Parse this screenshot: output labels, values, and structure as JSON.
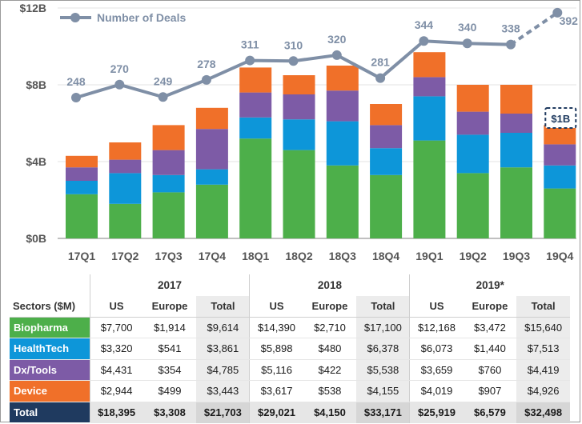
{
  "chart_data": {
    "type": "bar",
    "stacked": true,
    "title": "",
    "categories": [
      "17Q1",
      "17Q2",
      "17Q3",
      "17Q4",
      "18Q1",
      "18Q2",
      "18Q3",
      "18Q4",
      "19Q1",
      "19Q2",
      "19Q3",
      "19Q4"
    ],
    "y_ticks": [
      "$0B",
      "$4B",
      "$8B",
      "$12B"
    ],
    "ylim": [
      0,
      12
    ],
    "series": [
      {
        "name": "Biopharma",
        "color": "#4daf4a",
        "values": [
          2.3,
          1.8,
          2.4,
          2.8,
          5.2,
          4.6,
          3.8,
          3.3,
          5.1,
          3.4,
          3.7,
          2.6
        ]
      },
      {
        "name": "HealthTech",
        "color": "#0d96d9",
        "values": [
          0.7,
          1.6,
          0.9,
          0.8,
          1.1,
          1.6,
          2.3,
          1.4,
          2.3,
          2.0,
          1.8,
          1.2
        ]
      },
      {
        "name": "Dx/Tools",
        "color": "#7d5ba6",
        "values": [
          0.7,
          0.7,
          1.3,
          2.1,
          1.3,
          1.3,
          1.6,
          1.2,
          1.0,
          1.2,
          1.0,
          1.1
        ]
      },
      {
        "name": "Device",
        "color": "#f07029",
        "values": [
          0.6,
          0.9,
          1.3,
          1.1,
          1.3,
          1.0,
          1.3,
          1.1,
          1.3,
          1.4,
          1.5,
          1.0
        ]
      }
    ],
    "deals": {
      "name": "Number of Deals",
      "color": "#7f8fa6",
      "values": [
        248,
        270,
        249,
        278,
        311,
        310,
        320,
        281,
        344,
        340,
        338,
        392
      ],
      "labels": [
        "248",
        "270",
        "249",
        "278",
        "311",
        "310",
        "320",
        "281",
        "344",
        "340",
        "338",
        "392"
      ],
      "dashed_last_segment": true
    },
    "annotation": {
      "text": "$1B",
      "category": "19Q4"
    }
  },
  "table": {
    "years": [
      "2017",
      "2018",
      "2019*"
    ],
    "header": {
      "sector": "Sectors ($M)",
      "cols": [
        "US",
        "Europe",
        "Total",
        "US",
        "Europe",
        "Total",
        "US",
        "Europe",
        "Total"
      ]
    },
    "rows": [
      {
        "label": "Biopharma",
        "color": "#4daf4a",
        "values": [
          "$7,700",
          "$1,914",
          "$9,614",
          "$14,390",
          "$2,710",
          "$17,100",
          "$12,168",
          "$3,472",
          "$15,640"
        ]
      },
      {
        "label": "HealthTech",
        "color": "#0d96d9",
        "values": [
          "$3,320",
          "$541",
          "$3,861",
          "$5,898",
          "$480",
          "$6,378",
          "$6,073",
          "$1,440",
          "$7,513"
        ]
      },
      {
        "label": "Dx/Tools",
        "color": "#7d5ba6",
        "values": [
          "$4,431",
          "$354",
          "$4,785",
          "$5,116",
          "$422",
          "$5,538",
          "$3,659",
          "$760",
          "$4,419"
        ]
      },
      {
        "label": "Device",
        "color": "#f07029",
        "values": [
          "$2,944",
          "$499",
          "$3,443",
          "$3,617",
          "$538",
          "$4,155",
          "$4,019",
          "$907",
          "$4,926"
        ]
      },
      {
        "label": "Total",
        "color": "#1f3a5f",
        "values": [
          "$18,395",
          "$3,308",
          "$21,703",
          "$29,021",
          "$4,150",
          "$33,171",
          "$25,919",
          "$6,579",
          "$32,498"
        ]
      }
    ]
  }
}
